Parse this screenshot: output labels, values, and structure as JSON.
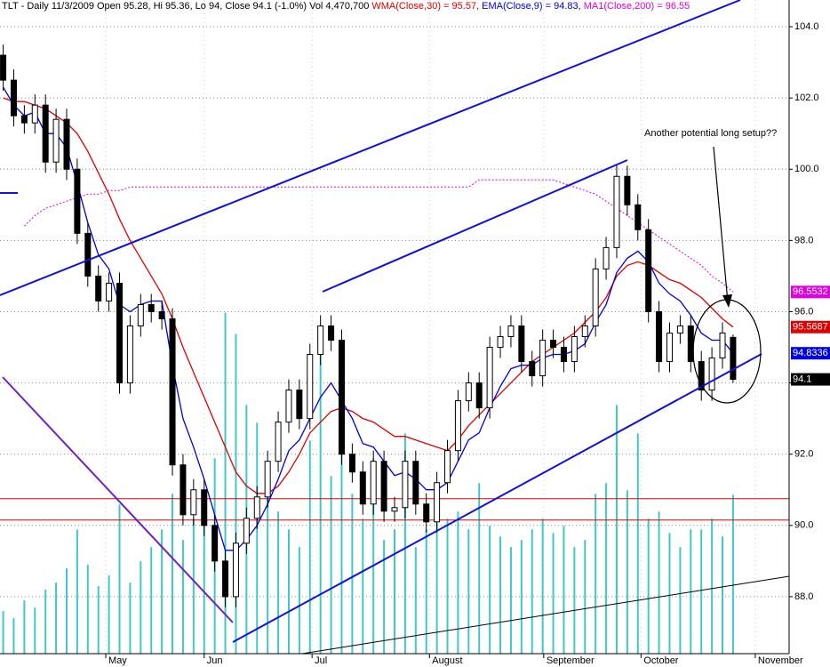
{
  "chart_data": {
    "type": "candlestick",
    "header": [
      {
        "text": "TLT - Daily 11/3/2009 Open 95.28, Hi 95.36, Lo 94, Close 94.1 (-1.0%) Vol 4,470,700",
        "color": "#000000"
      },
      {
        "text": "WMA(Close,30) = 95.57,",
        "color": "#e00000"
      },
      {
        "text": "EMA(Close,9) = 94.83,",
        "color": "#0000e0"
      },
      {
        "text": "MA1(Close,200) = 96.55",
        "color": "#e000e0"
      }
    ],
    "annotation": "Another potential long setup??",
    "xlim": [
      -0.3,
      74.3
    ],
    "ylim": [
      86.4,
      104.75
    ],
    "volume_lim": [
      0,
      18.4
    ],
    "grid": true,
    "xticks": [
      {
        "value": 9.7,
        "label": "May"
      },
      {
        "value": 19,
        "label": "Jun"
      },
      {
        "value": 29.2,
        "label": "Jul"
      },
      {
        "value": 40.3,
        "label": "August"
      },
      {
        "value": 51.1,
        "label": "September"
      },
      {
        "value": 60.3,
        "label": "October"
      },
      {
        "value": 71.1,
        "label": "November"
      }
    ],
    "yticks": [
      {
        "value": 88,
        "label": "88.0"
      },
      {
        "value": 90,
        "label": "90.0"
      },
      {
        "value": 92,
        "label": "92.0"
      },
      {
        "value": 94,
        "label": "94.0"
      },
      {
        "value": 96,
        "label": "96.0"
      },
      {
        "value": 98,
        "label": "98.0"
      },
      {
        "value": 100,
        "label": "100.0"
      },
      {
        "value": 102,
        "label": "102.0"
      },
      {
        "value": 104,
        "label": "104.0"
      }
    ],
    "hlines": [
      90.75,
      90.15
    ],
    "open": [
      103.2,
      102.5,
      101.5,
      101.3,
      101.8,
      100.2,
      101.4,
      100.0,
      98.2,
      97.0,
      96.3,
      96.8,
      94.0,
      95.6,
      96.2,
      96.0,
      95.8,
      91.7,
      90.3,
      91.0,
      90.0,
      89.0,
      88.0,
      89.5,
      90.2,
      90.8,
      91.8,
      92.9,
      93.8,
      93.0,
      94.8,
      95.6,
      95.2,
      92.0,
      91.5,
      90.6,
      91.8,
      90.4,
      90.5,
      91.8,
      90.6,
      90.1,
      91.2,
      92.1,
      93.5,
      94.0,
      93.3,
      95.0,
      95.3,
      95.6,
      94.6,
      94.2,
      95.2,
      95.0,
      94.6,
      95.3,
      95.6,
      97.2,
      97.8,
      99.8,
      99.0,
      98.3,
      96.0,
      94.6,
      95.4,
      95.6,
      94.6,
      93.8,
      94.7,
      95.28
    ],
    "high": [
      103.5,
      102.8,
      101.8,
      102.1,
      102.1,
      101.7,
      101.7,
      100.3,
      98.5,
      97.3,
      97.1,
      97.1,
      95.9,
      96.5,
      96.5,
      96.3,
      96.1,
      92.0,
      91.3,
      91.3,
      90.3,
      89.3,
      89.8,
      90.5,
      91.1,
      92.1,
      93.2,
      94.1,
      94.1,
      95.1,
      95.9,
      95.9,
      95.5,
      92.3,
      91.8,
      92.1,
      92.1,
      90.8,
      92.1,
      92.1,
      90.9,
      91.5,
      92.4,
      93.8,
      94.3,
      94.3,
      95.3,
      95.6,
      95.9,
      95.9,
      94.9,
      95.5,
      95.5,
      95.3,
      95.6,
      95.9,
      97.5,
      98.1,
      100.1,
      100.1,
      99.3,
      98.6,
      96.3,
      95.7,
      95.9,
      95.9,
      94.9,
      95.0,
      95.7,
      95.36
    ],
    "low": [
      102.2,
      101.2,
      101.0,
      101.0,
      99.9,
      99.9,
      99.7,
      97.9,
      96.7,
      96.0,
      96.0,
      93.7,
      93.7,
      95.3,
      95.7,
      95.5,
      91.4,
      90.0,
      90.0,
      89.7,
      88.7,
      87.7,
      87.7,
      89.2,
      89.9,
      90.5,
      91.5,
      92.6,
      92.7,
      92.7,
      94.5,
      94.9,
      91.7,
      91.2,
      90.3,
      90.3,
      90.1,
      90.1,
      90.2,
      90.3,
      89.8,
      89.8,
      90.9,
      91.8,
      93.2,
      93.0,
      93.0,
      94.7,
      95.0,
      94.3,
      93.9,
      93.9,
      94.7,
      94.3,
      94.3,
      95.0,
      95.3,
      96.9,
      97.5,
      98.7,
      98.0,
      95.7,
      94.3,
      94.3,
      95.1,
      94.3,
      93.5,
      93.5,
      94.4,
      94.0
    ],
    "close": [
      102.5,
      101.5,
      101.3,
      101.8,
      100.2,
      101.4,
      100.0,
      98.2,
      97.0,
      96.3,
      96.8,
      94.0,
      95.6,
      96.2,
      96.0,
      95.8,
      91.7,
      90.3,
      91.0,
      90.0,
      89.0,
      88.0,
      89.5,
      90.2,
      90.8,
      91.8,
      92.9,
      93.8,
      93.0,
      94.8,
      95.6,
      95.2,
      92.0,
      91.5,
      90.6,
      91.8,
      90.4,
      90.5,
      91.8,
      90.6,
      90.1,
      91.2,
      92.1,
      93.5,
      94.0,
      93.3,
      95.0,
      95.3,
      95.6,
      94.6,
      94.2,
      95.2,
      95.0,
      94.6,
      95.3,
      95.6,
      97.2,
      97.8,
      99.8,
      99.0,
      98.3,
      96.0,
      94.6,
      95.4,
      95.6,
      94.6,
      93.8,
      94.7,
      95.4,
      94.1
    ],
    "volume": [
      1.2,
      1.0,
      1.5,
      1.3,
      1.8,
      2.0,
      2.4,
      3.5,
      2.5,
      1.9,
      2.2,
      4.2,
      2.0,
      2.6,
      3.0,
      3.5,
      4.5,
      3.2,
      3.8,
      4.0,
      5.5,
      9.6,
      9.0,
      7.0,
      6.5,
      5.2,
      4.0,
      3.5,
      3.0,
      6.0,
      8.5,
      5.0,
      6.0,
      4.5,
      3.8,
      5.5,
      3.2,
      3.5,
      6.2,
      3.0,
      3.5,
      4.2,
      3.8,
      4.0,
      3.5,
      4.8,
      3.6,
      3.3,
      3.0,
      3.2,
      3.5,
      3.8,
      3.4,
      3.6,
      3.0,
      3.2,
      4.5,
      4.8,
      7.0,
      4.6,
      6.2,
      3.8,
      4.0,
      3.4,
      3.0,
      3.5,
      3.5,
      3.8,
      3.3,
      4.47
    ],
    "volume_color": "#40c8c8",
    "close_tag": {
      "value": 94.1,
      "color": "#000000"
    },
    "series": [
      {
        "color": "#e000e0",
        "dashed": true,
        "tag": 96.5532,
        "values": [
          null,
          null,
          98.4,
          98.7,
          98.9,
          99.0,
          99.1,
          99.2,
          99.3,
          99.3,
          99.4,
          99.4,
          99.5,
          99.5,
          99.5,
          99.5,
          99.5,
          99.5,
          99.5,
          99.5,
          99.5,
          99.5,
          99.5,
          99.5,
          99.5,
          99.5,
          99.5,
          99.5,
          99.5,
          99.5,
          99.5,
          99.5,
          99.5,
          99.5,
          99.5,
          99.5,
          99.5,
          99.5,
          99.5,
          99.5,
          99.5,
          99.5,
          99.5,
          99.5,
          99.5,
          99.7,
          99.7,
          99.7,
          99.7,
          99.7,
          99.7,
          99.7,
          99.7,
          99.6,
          99.5,
          99.4,
          99.3,
          99.1,
          98.9,
          98.7,
          98.5,
          98.3,
          98.1,
          97.9,
          97.7,
          97.5,
          97.3,
          97.0,
          96.8,
          96.55
        ]
      },
      {
        "color": "#e00000",
        "dashed": false,
        "tag": 95.5687,
        "values": [
          102.0,
          101.9,
          101.9,
          101.8,
          101.7,
          101.5,
          101.3,
          101.0,
          100.5,
          99.9,
          99.3,
          98.6,
          98.0,
          97.5,
          97.0,
          96.5,
          95.8,
          95.0,
          94.3,
          93.6,
          92.9,
          92.2,
          91.5,
          91.1,
          90.9,
          90.9,
          91.1,
          91.5,
          92.0,
          92.6,
          92.9,
          93.2,
          93.3,
          93.2,
          93.0,
          92.9,
          92.7,
          92.5,
          92.5,
          92.4,
          92.3,
          92.2,
          92.1,
          92.4,
          92.8,
          93.1,
          93.4,
          93.7,
          94.0,
          94.3,
          94.6,
          94.8,
          95.0,
          95.2,
          95.4,
          95.7,
          96.0,
          96.4,
          97.0,
          97.3,
          97.4,
          97.3,
          97.1,
          96.9,
          96.8,
          96.6,
          96.4,
          96.1,
          95.8,
          95.57
        ]
      },
      {
        "color": "#0000e0",
        "dashed": false,
        "tag": 94.8336,
        "values": [
          102.3,
          101.8,
          101.5,
          101.6,
          101.0,
          101.0,
          100.6,
          99.6,
          98.5,
          97.6,
          97.2,
          96.2,
          96.0,
          96.2,
          96.3,
          96.3,
          94.5,
          93.0,
          92.2,
          91.3,
          90.3,
          89.3,
          89.3,
          89.6,
          90.0,
          90.6,
          91.3,
          92.1,
          92.4,
          93.0,
          93.6,
          94.0,
          93.5,
          93.0,
          92.3,
          92.2,
          91.8,
          91.4,
          91.5,
          91.3,
          91.0,
          91.0,
          91.2,
          91.8,
          92.4,
          92.6,
          93.3,
          93.9,
          94.4,
          94.5,
          94.5,
          94.7,
          94.8,
          94.8,
          94.9,
          95.1,
          95.7,
          96.2,
          97.1,
          97.5,
          97.7,
          97.4,
          96.8,
          96.5,
          96.3,
          95.9,
          95.4,
          95.2,
          95.2,
          94.83
        ]
      }
    ]
  }
}
